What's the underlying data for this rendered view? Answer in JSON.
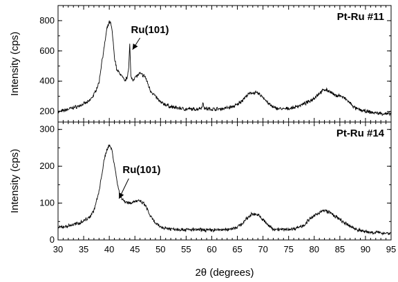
{
  "chart_data": {
    "type": "line",
    "xlabel": "2θ (degrees)",
    "xlim": [
      30,
      95
    ],
    "xticks": [
      "30",
      "35",
      "40",
      "45",
      "50",
      "55",
      "60",
      "65",
      "70",
      "75",
      "80",
      "85",
      "90",
      "95"
    ],
    "grid": false,
    "panels": [
      {
        "label": "Pt-Ru #11",
        "ylabel": "Intensity (cps)",
        "ylim": [
          130,
          900
        ],
        "yticks": [
          "200",
          "400",
          "600",
          "800"
        ],
        "annotation": {
          "text": "Ru(101)",
          "x": 44.0,
          "y": 645
        },
        "x": [
          30,
          32,
          34,
          36,
          37,
          38,
          38.5,
          39,
          39.5,
          40,
          40.3,
          40.6,
          41,
          41.5,
          42,
          42.5,
          43,
          43.5,
          43.8,
          44.0,
          44.2,
          44.6,
          45,
          46,
          47,
          48,
          50,
          52,
          55,
          57,
          58,
          58.3,
          58.6,
          60,
          62,
          64,
          65,
          66,
          67,
          68,
          69,
          70,
          71,
          72,
          74,
          76,
          78,
          79,
          80,
          81,
          82,
          83,
          84,
          85,
          86,
          87,
          88,
          90,
          92,
          95
        ],
        "values": [
          195,
          215,
          235,
          265,
          310,
          390,
          520,
          620,
          740,
          790,
          780,
          720,
          560,
          470,
          455,
          430,
          400,
          425,
          500,
          645,
          430,
          410,
          425,
          450,
          430,
          340,
          260,
          230,
          215,
          215,
          225,
          255,
          220,
          215,
          218,
          230,
          245,
          275,
          310,
          325,
          320,
          295,
          255,
          225,
          215,
          225,
          250,
          265,
          290,
          320,
          345,
          335,
          305,
          305,
          285,
          255,
          220,
          200,
          190,
          182
        ]
      },
      {
        "label": "Pt-Ru #14",
        "ylabel": "Intensity (cps)",
        "ylim": [
          0,
          320
        ],
        "yticks": [
          "0",
          "100",
          "200",
          "300"
        ],
        "annotation": {
          "text": "Ru(101)",
          "x": 43.5,
          "y": 110
        },
        "x": [
          30,
          32,
          34,
          36,
          37,
          38,
          38.5,
          39,
          39.5,
          40,
          40.5,
          41,
          41.5,
          42,
          42.5,
          43,
          44,
          45,
          46,
          47,
          48,
          49,
          50,
          52,
          55,
          60,
          63,
          65,
          66,
          67,
          68,
          69,
          70,
          71,
          72,
          74,
          76,
          78,
          79,
          80,
          81,
          82,
          83,
          84,
          85,
          86,
          88,
          90,
          92,
          95
        ],
        "values": [
          33,
          38,
          45,
          60,
          80,
          130,
          175,
          215,
          245,
          258,
          245,
          205,
          160,
          125,
          110,
          105,
          100,
          105,
          105,
          95,
          65,
          45,
          35,
          30,
          28,
          27,
          28,
          35,
          45,
          60,
          72,
          68,
          55,
          40,
          30,
          28,
          30,
          40,
          55,
          65,
          75,
          80,
          75,
          65,
          55,
          45,
          30,
          22,
          20,
          18
        ]
      }
    ]
  }
}
